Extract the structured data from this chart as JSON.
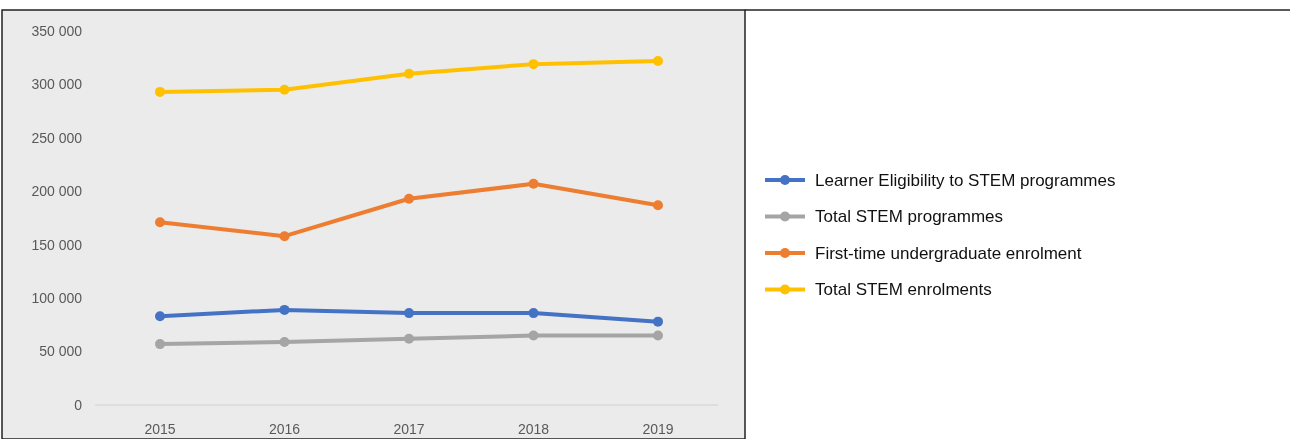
{
  "chart_data": {
    "type": "line",
    "categories": [
      "2015",
      "2016",
      "2017",
      "2018",
      "2019"
    ],
    "series": [
      {
        "name": "Learner Eligibility to STEM programmes",
        "color": "#4472c4",
        "values": [
          83000,
          89000,
          86000,
          86000,
          78000
        ]
      },
      {
        "name": "Total STEM programmes",
        "color": "#a5a5a5",
        "values": [
          57000,
          59000,
          62000,
          65000,
          65000
        ]
      },
      {
        "name": "First-time undergraduate enrolment",
        "color": "#ed7d31",
        "values": [
          171000,
          158000,
          193000,
          207000,
          187000
        ]
      },
      {
        "name": "Total STEM enrolments",
        "color": "#ffc000",
        "values": [
          293000,
          295000,
          310000,
          319000,
          322000
        ]
      }
    ],
    "ylim": [
      0,
      350000
    ],
    "yticks": [
      0,
      {
        "value": 50000,
        "label": "50 000"
      },
      {
        "value": 100000,
        "label": "100 000"
      },
      {
        "value": 150000,
        "label": "150 000"
      },
      {
        "value": 200000,
        "label": "200 000"
      },
      {
        "value": 250000,
        "label": "250 000"
      },
      {
        "value": 300000,
        "label": "300 000"
      },
      {
        "value": 350000,
        "label": "350 000"
      }
    ],
    "grid": false,
    "legend": "right",
    "marker": "circle",
    "line_style": "solid"
  }
}
